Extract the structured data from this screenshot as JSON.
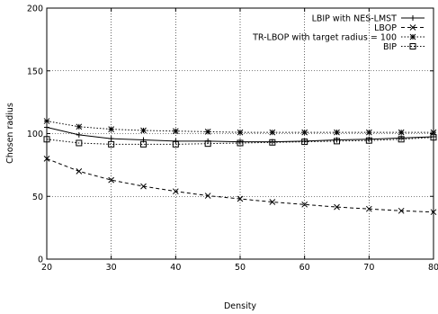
{
  "chart_data": {
    "type": "line",
    "title": "",
    "xlabel": "Density",
    "ylabel": "Chosen radius",
    "xlim": [
      20,
      80
    ],
    "ylim": [
      0,
      200
    ],
    "xticks": [
      20,
      30,
      40,
      50,
      60,
      70,
      80
    ],
    "yticks": [
      0,
      50,
      100,
      150,
      200
    ],
    "grid": "dotted",
    "legend_position": "top-right",
    "x": [
      20,
      25,
      30,
      35,
      40,
      45,
      50,
      55,
      60,
      65,
      70,
      75,
      80
    ],
    "series": [
      {
        "name": "LBIP with NES-LMST",
        "style": "solid",
        "marker": "plus",
        "values": [
          105,
          99,
          96,
          95,
          94,
          94,
          93.5,
          93.5,
          94,
          95,
          95.5,
          96.5,
          97.5
        ]
      },
      {
        "name": "LBOP",
        "style": "dashed",
        "marker": "cross",
        "values": [
          80,
          70,
          63,
          58,
          54,
          50.5,
          48,
          45.5,
          43.5,
          41.5,
          40,
          38.5,
          37.5
        ]
      },
      {
        "name": "TR-LBOP with target radius = 100",
        "style": "dotted",
        "marker": "star",
        "values": [
          110,
          105.5,
          103.5,
          102.5,
          102,
          101.5,
          101,
          101,
          101,
          101,
          101,
          101,
          101
        ]
      },
      {
        "name": "BIP",
        "style": "dotted",
        "marker": "square",
        "values": [
          95.5,
          92.5,
          91.5,
          91.5,
          91.5,
          92,
          92.5,
          93,
          93.5,
          94,
          94.5,
          95.5,
          97
        ]
      }
    ]
  }
}
